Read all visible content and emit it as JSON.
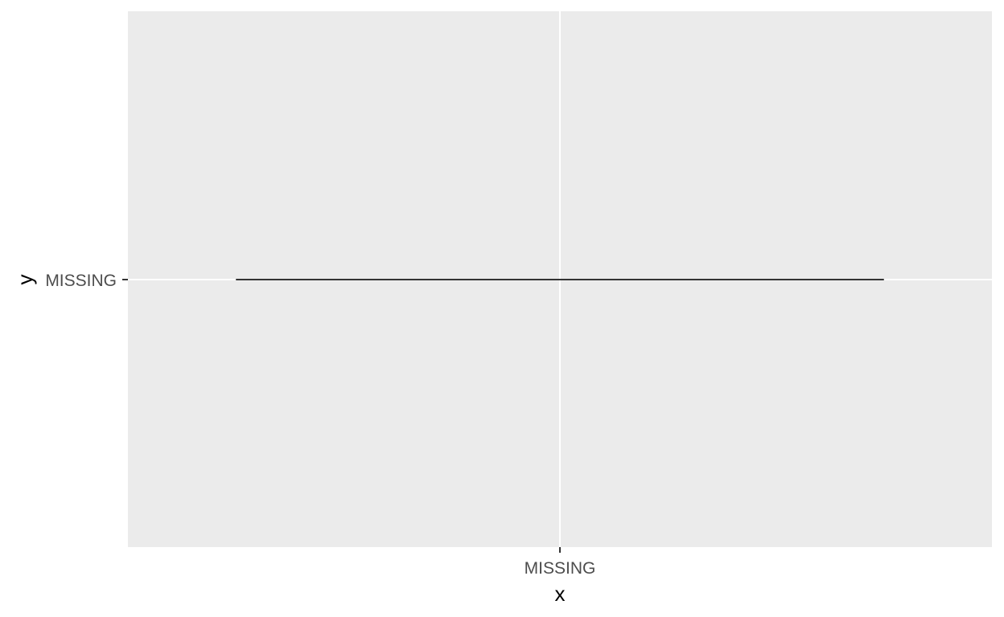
{
  "chart_data": {
    "type": "line",
    "title": "",
    "xlabel": "x",
    "ylabel": "y",
    "x_categories": [
      "MISSING"
    ],
    "y_categories": [
      "MISSING"
    ],
    "series": [
      {
        "points": [
          {
            "x": "MISSING",
            "y": "MISSING"
          }
        ],
        "line_span": [
          -0.75,
          0.75
        ],
        "color": "#333333"
      }
    ],
    "grid": true,
    "legend": "none",
    "panel_background": "#ebebeb",
    "grid_color": "#ffffff"
  }
}
